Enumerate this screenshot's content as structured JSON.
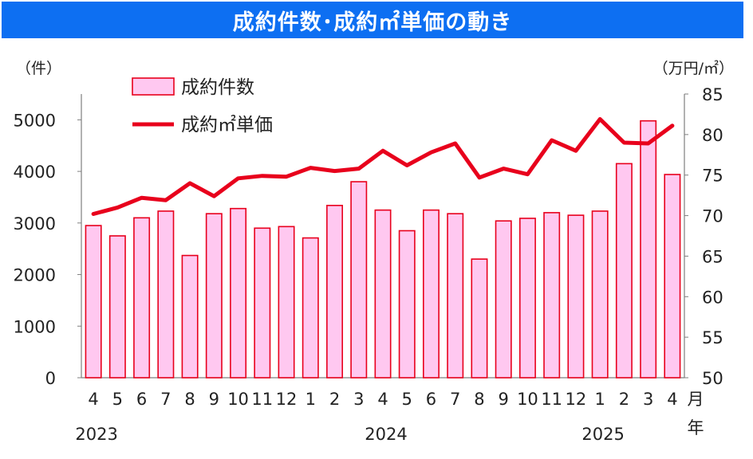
{
  "title": "成約件数･成約㎡単価の動き",
  "chart_data": {
    "type": "bar",
    "title": "成約件数･成約㎡単価の動き",
    "categories": [
      "4",
      "5",
      "6",
      "7",
      "8",
      "9",
      "10",
      "11",
      "12",
      "1",
      "2",
      "3",
      "4",
      "5",
      "6",
      "7",
      "8",
      "9",
      "10",
      "11",
      "12",
      "1",
      "2",
      "3",
      "4"
    ],
    "year_labels": [
      {
        "label": "2023",
        "index": 0
      },
      {
        "label": "2024",
        "index": 12
      },
      {
        "label": "2025",
        "index": 21
      }
    ],
    "x_unit_month": "月",
    "x_unit_year": "年",
    "series": [
      {
        "name": "成約件数",
        "type": "bar",
        "axis": "left",
        "color": "#ffc8f0",
        "edge": "#e8001c",
        "values": [
          2950,
          2750,
          3100,
          3230,
          2370,
          3180,
          3280,
          2900,
          2930,
          2710,
          3340,
          3800,
          3250,
          2850,
          3250,
          3180,
          2300,
          3040,
          3090,
          3200,
          3150,
          3230,
          4150,
          4980,
          3940
        ]
      },
      {
        "name": "成約㎡単価",
        "type": "line",
        "axis": "right",
        "color": "#e8001c",
        "values": [
          70.2,
          71.0,
          72.2,
          71.9,
          74.0,
          72.4,
          74.6,
          74.9,
          74.8,
          75.9,
          75.5,
          75.8,
          78.0,
          76.2,
          77.8,
          78.9,
          74.7,
          75.8,
          75.1,
          79.3,
          78.0,
          81.9,
          79.0,
          78.9,
          81.1
        ]
      }
    ],
    "y_left": {
      "label": "（件）",
      "min": 0,
      "max": 5500,
      "ticks": [
        0,
        1000,
        2000,
        3000,
        4000,
        5000
      ]
    },
    "y_right": {
      "label": "（万円/㎡）",
      "min": 50,
      "max": 85,
      "ticks": [
        50,
        55,
        60,
        65,
        70,
        75,
        80,
        85
      ]
    },
    "legend_position": "top-left",
    "grid": false
  }
}
